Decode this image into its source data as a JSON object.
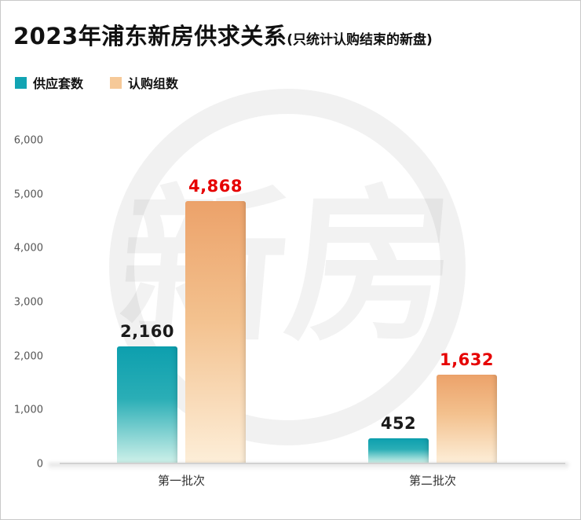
{
  "header": {
    "title": "2023年浦东新房供求关系",
    "subtitle": "(只统计认购结束的新盘)"
  },
  "legend": {
    "items": [
      {
        "label": "供应套数",
        "color": "#12a4b3"
      },
      {
        "label": "认购组数",
        "color": "#f6c998"
      }
    ]
  },
  "watermark_text": "新房",
  "chart_data": {
    "type": "bar",
    "title": "2023年浦东新房供求关系(只统计认购结束的新盘)",
    "categories": [
      "第一批次",
      "第二批次"
    ],
    "series": [
      {
        "name": "供应套数",
        "values": [
          2160,
          452
        ],
        "value_labels": [
          "2,160",
          "452"
        ],
        "label_color": "#1a1a1a",
        "color_top": "#0d9fae",
        "color_mid": "#2aaeb6",
        "color_bottom": "#cdf0e9"
      },
      {
        "name": "认购组数",
        "values": [
          4868,
          1632
        ],
        "value_labels": [
          "4,868",
          "1,632"
        ],
        "label_color": "#e60000",
        "color_top": "#eca26a",
        "color_mid": "#f3c18e",
        "color_bottom": "#fdeed8"
      }
    ],
    "ylim": [
      0,
      6000
    ],
    "yticks": [
      0,
      1000,
      2000,
      3000,
      4000,
      5000,
      6000
    ],
    "grid": false,
    "legend_position": "top-left"
  }
}
